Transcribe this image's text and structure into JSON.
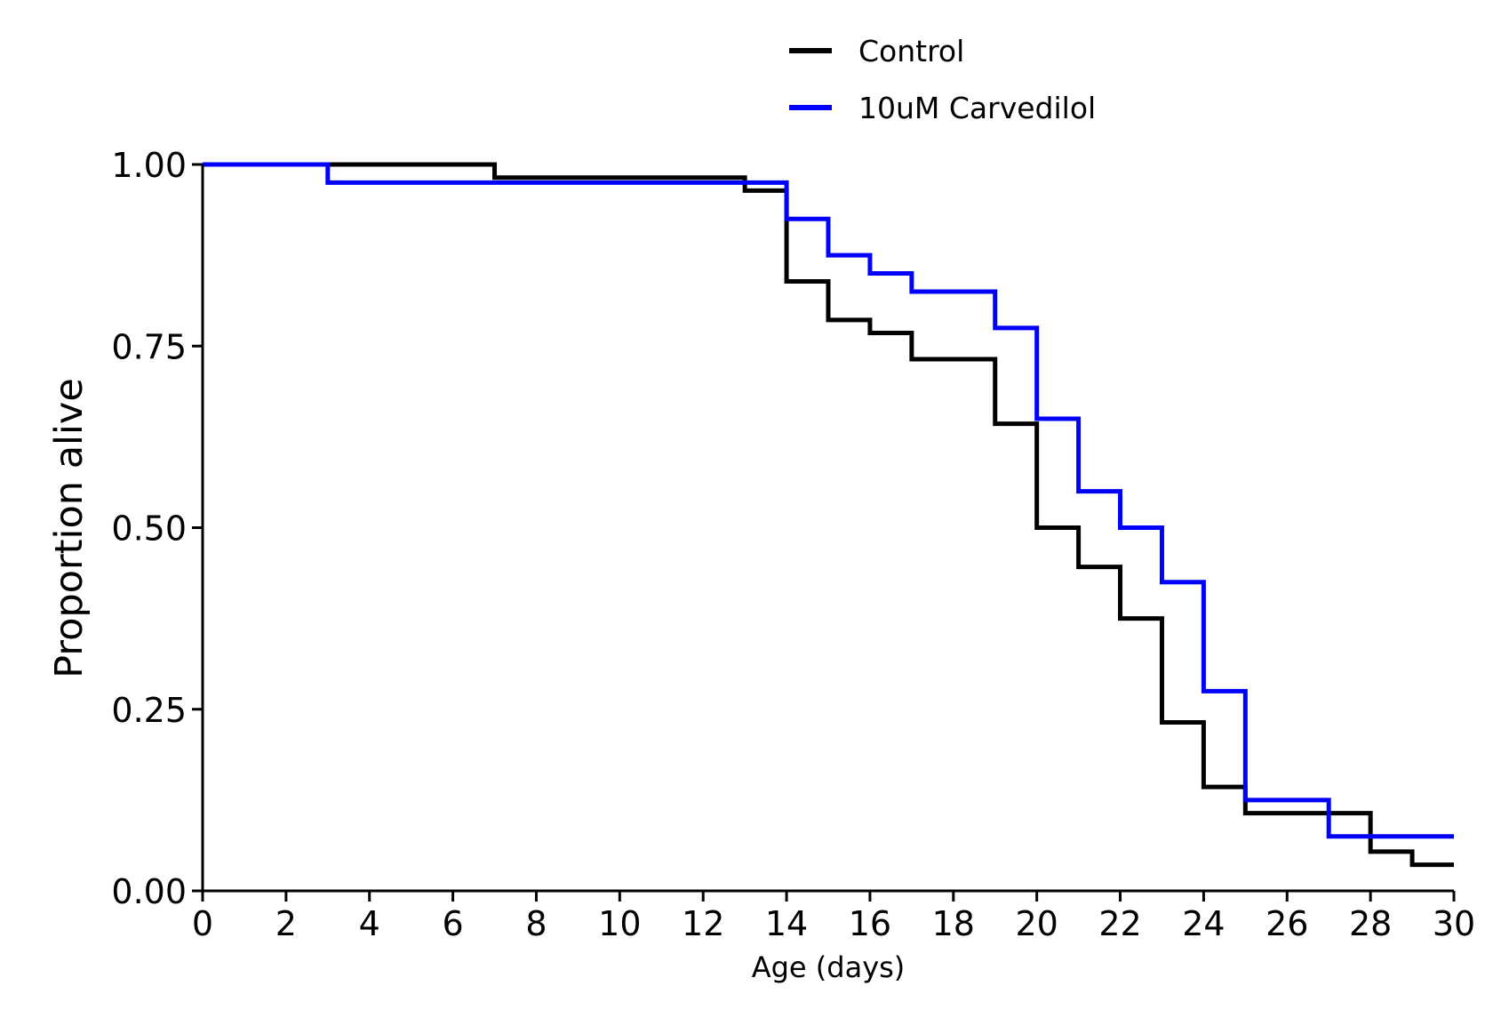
{
  "chart_data": {
    "type": "line",
    "subtype": "step",
    "title": "",
    "xlabel": "Age (days)",
    "ylabel": "Proportion alive",
    "xlim": [
      0,
      30
    ],
    "ylim": [
      0,
      1
    ],
    "xticks": [
      0,
      2,
      4,
      6,
      8,
      10,
      12,
      14,
      16,
      18,
      20,
      22,
      24,
      26,
      28,
      30
    ],
    "yticks": [
      "0.00",
      "0.25",
      "0.50",
      "0.75",
      "1.00"
    ],
    "grid": false,
    "legend_position": "top-center",
    "series": [
      {
        "name": "Control",
        "color": "#000000",
        "x": [
          0,
          7,
          13,
          14,
          15,
          16,
          17,
          19,
          20,
          21,
          22,
          23,
          24,
          25,
          28,
          29,
          30
        ],
        "y": [
          1.0,
          0.982,
          0.964,
          0.839,
          0.786,
          0.768,
          0.732,
          0.643,
          0.5,
          0.446,
          0.375,
          0.232,
          0.143,
          0.107,
          0.054,
          0.036,
          0.036
        ]
      },
      {
        "name": "10uM Carvedilol",
        "color": "#0000ff",
        "x": [
          0,
          3,
          14,
          15,
          16,
          17,
          19,
          20,
          21,
          22,
          23,
          24,
          25,
          27,
          30
        ],
        "y": [
          1.0,
          0.975,
          0.925,
          0.875,
          0.85,
          0.825,
          0.775,
          0.65,
          0.55,
          0.5,
          0.425,
          0.275,
          0.125,
          0.075,
          0.075
        ]
      }
    ]
  }
}
